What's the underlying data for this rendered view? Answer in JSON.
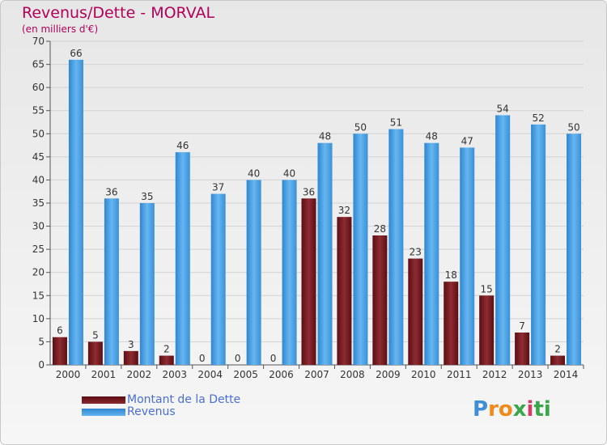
{
  "title": "Revenus/Dette - MORVAL",
  "subtitle": "(en milliers d'€)",
  "logo": "Proxiti",
  "colors": {
    "dette": "#7b1a1f",
    "revenus": "#4aa2e6",
    "title": "#b4005a",
    "legend_text": "#4a6fd8"
  },
  "chart_data": {
    "type": "bar",
    "categories": [
      "2000",
      "2001",
      "2002",
      "2003",
      "2004",
      "2005",
      "2006",
      "2007",
      "2008",
      "2009",
      "2010",
      "2011",
      "2012",
      "2013",
      "2014"
    ],
    "series": [
      {
        "name": "Montant de la Dette",
        "values": [
          6,
          5,
          3,
          2,
          0,
          0,
          0,
          36,
          32,
          28,
          23,
          18,
          15,
          7,
          2
        ]
      },
      {
        "name": "Revenus",
        "values": [
          66,
          36,
          35,
          46,
          37,
          40,
          40,
          48,
          50,
          51,
          48,
          47,
          54,
          52,
          50
        ]
      }
    ],
    "ylim": [
      0,
      70
    ],
    "yticks": [
      0,
      5,
      10,
      15,
      20,
      25,
      30,
      35,
      40,
      45,
      50,
      55,
      60,
      65,
      70
    ],
    "grid": true,
    "legend_position": "bottom-left"
  }
}
